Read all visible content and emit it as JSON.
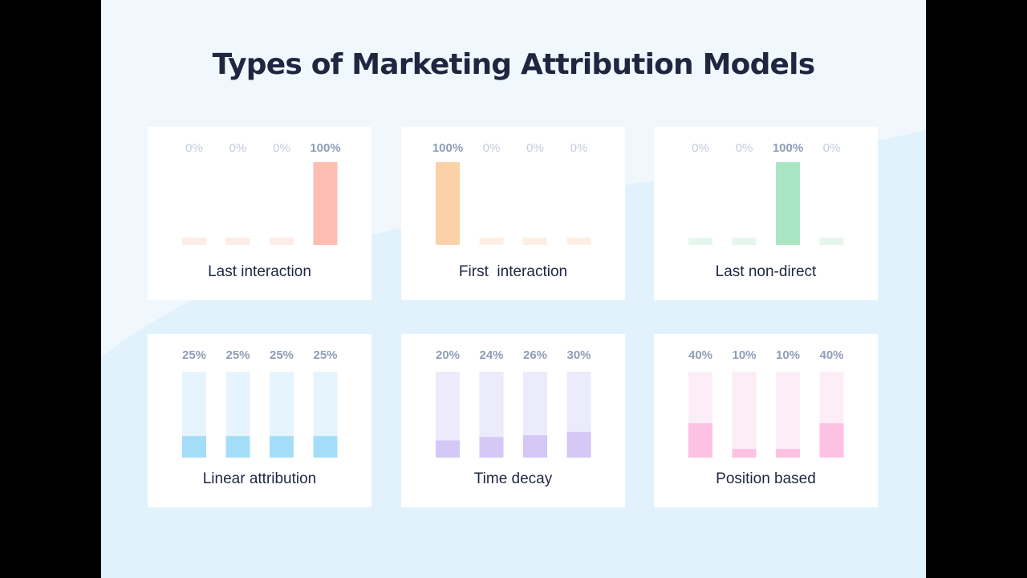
{
  "title": "Types of Marketing Attribution Models",
  "colors": {
    "background": "#f0f8fe",
    "wave": "#e1f2fd",
    "card": "#ffffff",
    "title_text": "#1f2740",
    "value_text_highlight": "#8f9db8",
    "value_text_muted": "#c4ccda"
  },
  "chart_data": [
    {
      "type": "bar",
      "title": "Last interaction",
      "categories": [
        "",
        "",
        "",
        ""
      ],
      "value_labels": [
        "0%",
        "0%",
        "0%",
        "100%"
      ],
      "values": [
        0,
        0,
        0,
        100
      ],
      "ylim": [
        0,
        100
      ],
      "color": "#fdbdb1",
      "track_color": "#fdece7"
    },
    {
      "type": "bar",
      "title": "First  interaction",
      "categories": [
        "",
        "",
        "",
        ""
      ],
      "value_labels": [
        "100%",
        "0%",
        "0%",
        "0%"
      ],
      "values": [
        100,
        0,
        0,
        0
      ],
      "ylim": [
        0,
        100
      ],
      "color": "#fdd1a8",
      "track_color": "#fdefe3"
    },
    {
      "type": "bar",
      "title": "Last non-direct",
      "categories": [
        "",
        "",
        "",
        ""
      ],
      "value_labels": [
        "0%",
        "0%",
        "100%",
        "0%"
      ],
      "values": [
        0,
        0,
        100,
        0
      ],
      "ylim": [
        0,
        100
      ],
      "color": "#abe6c4",
      "track_color": "#e5f7ed"
    },
    {
      "type": "bar",
      "title": "Linear attribution",
      "categories": [
        "",
        "",
        "",
        ""
      ],
      "value_labels": [
        "25%",
        "25%",
        "25%",
        "25%"
      ],
      "values": [
        25,
        25,
        25,
        25
      ],
      "ylim": [
        0,
        100
      ],
      "color": "#a4ddf8",
      "track_color": "#e6f5fd"
    },
    {
      "type": "bar",
      "title": "Time decay",
      "categories": [
        "",
        "",
        "",
        ""
      ],
      "value_labels": [
        "20%",
        "24%",
        "26%",
        "30%"
      ],
      "values": [
        20,
        24,
        26,
        30
      ],
      "ylim": [
        0,
        100
      ],
      "color": "#d5c7f6",
      "track_color": "#ecebfc"
    },
    {
      "type": "bar",
      "title": "Position based",
      "categories": [
        "",
        "",
        "",
        ""
      ],
      "value_labels": [
        "40%",
        "10%",
        "10%",
        "40%"
      ],
      "values": [
        40,
        10,
        10,
        40
      ],
      "ylim": [
        0,
        100
      ],
      "color": "#fdc2e1",
      "track_color": "#fdedf6"
    }
  ]
}
